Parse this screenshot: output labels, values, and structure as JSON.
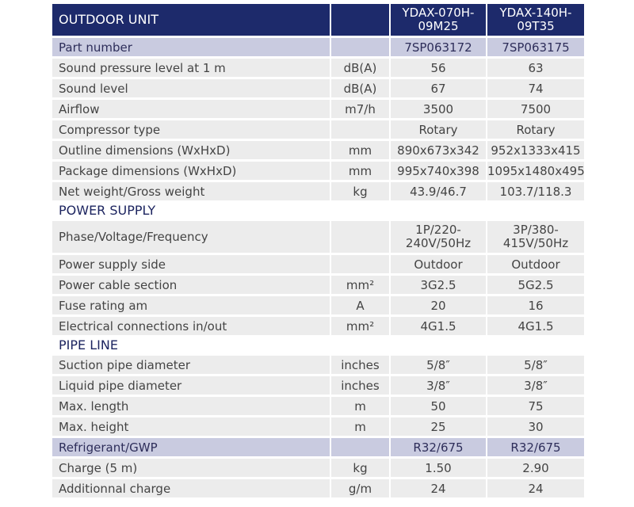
{
  "header": {
    "title": "OUTDOOR UNIT",
    "models": [
      "YDAX-070H-09M25",
      "YDAX-140H-09T35"
    ]
  },
  "rows": [
    {
      "type": "hl",
      "label": "Part number",
      "unit": "",
      "m1": "7SP063172",
      "m2": "7SP063175"
    },
    {
      "type": "data",
      "label": "Sound pressure level at 1 m",
      "unit": "dB(A)",
      "m1": "56",
      "m2": "63"
    },
    {
      "type": "data",
      "label": "Sound level",
      "unit": "dB(A)",
      "m1": "67",
      "m2": "74"
    },
    {
      "type": "data",
      "label": "Airflow",
      "unit": "m7/h",
      "m1": "3500",
      "m2": "7500"
    },
    {
      "type": "data",
      "label": "Compressor type",
      "unit": "",
      "m1": "Rotary",
      "m2": "Rotary"
    },
    {
      "type": "data",
      "label": "Outline dimensions (WxHxD)",
      "unit": "mm",
      "m1": "890x673x342",
      "m2": "952x1333x415"
    },
    {
      "type": "data",
      "label": "Package dimensions (WxHxD)",
      "unit": "mm",
      "m1": "995x740x398",
      "m2": "1095x1480x495"
    },
    {
      "type": "data",
      "label": "Net weight/Gross weight",
      "unit": "kg",
      "m1": "43.9/46.7",
      "m2": "103.7/118.3"
    },
    {
      "type": "section",
      "label": "POWER SUPPLY"
    },
    {
      "type": "data",
      "tall": true,
      "label": "Phase/Voltage/Frequency",
      "unit": "",
      "m1": "1P/220-240V/50Hz",
      "m2": "3P/380-415V/50Hz"
    },
    {
      "type": "data",
      "label": "Power supply side",
      "unit": "",
      "m1": "Outdoor",
      "m2": "Outdoor"
    },
    {
      "type": "data",
      "label": "Power cable section",
      "unit": "mm²",
      "m1": "3G2.5",
      "m2": "5G2.5"
    },
    {
      "type": "data",
      "label": "Fuse rating am",
      "unit": "A",
      "m1": "20",
      "m2": "16"
    },
    {
      "type": "data",
      "label": "Electrical connections in/out",
      "unit": "mm²",
      "m1": "4G1.5",
      "m2": "4G1.5"
    },
    {
      "type": "section",
      "label": "PIPE LINE"
    },
    {
      "type": "data",
      "label": "Suction pipe diameter",
      "unit": "inches",
      "m1": "5/8″",
      "m2": "5/8″"
    },
    {
      "type": "data",
      "label": "Liquid pipe diameter",
      "unit": "inches",
      "m1": "3/8″",
      "m2": "3/8″"
    },
    {
      "type": "data",
      "label": "Max. length",
      "unit": "m",
      "m1": "50",
      "m2": "75"
    },
    {
      "type": "data",
      "label": "Max. height",
      "unit": "m",
      "m1": "25",
      "m2": "30"
    },
    {
      "type": "hl",
      "label": "Refrigerant/GWP",
      "unit": "",
      "m1": "R32/675",
      "m2": "R32/675"
    },
    {
      "type": "data",
      "label": "Charge (5 m)",
      "unit": "kg",
      "m1": "1.50",
      "m2": "2.90"
    },
    {
      "type": "data",
      "label": "Additionnal charge",
      "unit": "g/m",
      "m1": "24",
      "m2": "24"
    }
  ]
}
